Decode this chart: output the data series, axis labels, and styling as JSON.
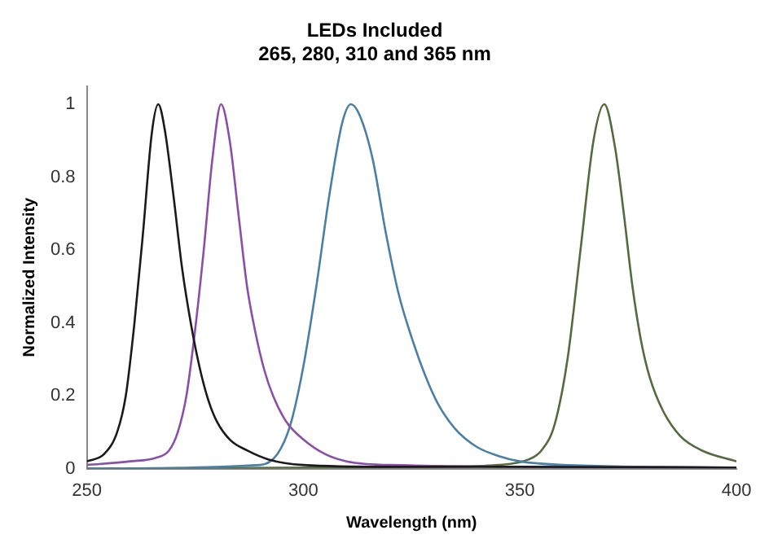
{
  "chart_data": {
    "type": "line",
    "title": "LEDs Included",
    "subtitle": "265, 280, 310 and 365 nm",
    "xlabel": "Wavelength (nm)",
    "ylabel": "Normalized Intensity",
    "xlim": [
      250,
      400
    ],
    "xticks": [
      250,
      300,
      350,
      400
    ],
    "ylim": [
      0,
      1.05
    ],
    "yticks": [
      0,
      0.2,
      0.4,
      0.6,
      0.8,
      1
    ],
    "grid": false,
    "legend": false,
    "marker": "none",
    "line_style": "solid",
    "series": [
      {
        "color": "#1a1a1a",
        "x": [
          250,
          254,
          257,
          259,
          261,
          263,
          265,
          266.5,
          268,
          270,
          272,
          274,
          276,
          278,
          280,
          283,
          287,
          292,
          300,
          320,
          350,
          400
        ],
        "values": [
          0.02,
          0.04,
          0.1,
          0.2,
          0.4,
          0.65,
          0.92,
          1,
          0.93,
          0.75,
          0.55,
          0.4,
          0.28,
          0.19,
          0.13,
          0.08,
          0.05,
          0.025,
          0.01,
          0.005,
          0.005,
          0.003
        ]
      },
      {
        "color": "#8b4fa8",
        "x": [
          250,
          260,
          266,
          269,
          271,
          273,
          275,
          277,
          279,
          281,
          283,
          285,
          287,
          289,
          291,
          293,
          296,
          300,
          305,
          310,
          320,
          400
        ],
        "values": [
          0.01,
          0.02,
          0.03,
          0.05,
          0.1,
          0.2,
          0.38,
          0.6,
          0.85,
          1,
          0.9,
          0.7,
          0.5,
          0.37,
          0.27,
          0.2,
          0.13,
          0.08,
          0.04,
          0.02,
          0.01,
          0.003
        ]
      },
      {
        "color": "#4a7fa8",
        "x": [
          250,
          290,
          294,
          297,
          300,
          303,
          306,
          309,
          311,
          313,
          316,
          319,
          322,
          325,
          328,
          331,
          335,
          340,
          345,
          350,
          360,
          400
        ],
        "values": [
          0,
          0.01,
          0.04,
          0.12,
          0.28,
          0.5,
          0.75,
          0.95,
          1,
          0.97,
          0.85,
          0.65,
          0.48,
          0.36,
          0.26,
          0.18,
          0.11,
          0.06,
          0.035,
          0.02,
          0.01,
          0.003
        ]
      },
      {
        "color": "#556b3f",
        "x": [
          250,
          330,
          345,
          352,
          355,
          358,
          361,
          364,
          367,
          369.5,
          372,
          374,
          376,
          378,
          380,
          383,
          387,
          392,
          400
        ],
        "values": [
          0,
          0.005,
          0.01,
          0.025,
          0.05,
          0.12,
          0.3,
          0.6,
          0.9,
          1,
          0.88,
          0.7,
          0.5,
          0.35,
          0.25,
          0.16,
          0.09,
          0.05,
          0.02
        ]
      }
    ]
  }
}
